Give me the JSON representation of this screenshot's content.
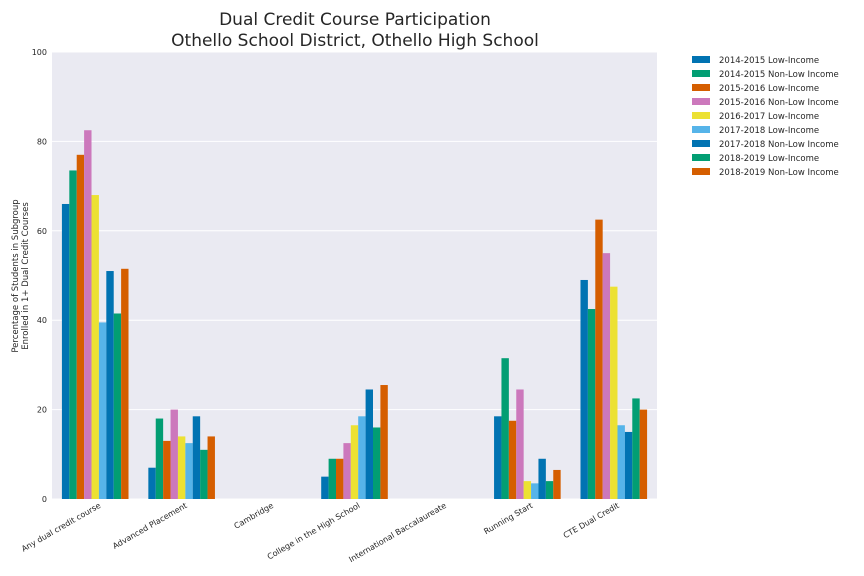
{
  "chart_data": {
    "type": "bar",
    "title": [
      "Dual Credit Course Participation",
      "Othello School District, Othello High School"
    ],
    "xlabel": "",
    "ylabel": [
      "Percentage of Students in Subgroup",
      "Enrolled in 1+ Dual Credit Courses"
    ],
    "ylim": [
      0,
      100
    ],
    "yticks": [
      0,
      20,
      40,
      60,
      80,
      100
    ],
    "grid": true,
    "legend_position": "outside-top-right",
    "categories": [
      "Any dual credit course",
      "Advanced Placement",
      "Cambridge",
      "College in the High School",
      "International Baccalaureate",
      "Running Start",
      "CTE Dual Credit"
    ],
    "series": [
      {
        "name": "2014-2015 Low-Income",
        "color": "#0173b2",
        "values": [
          66,
          7,
          0,
          5,
          0,
          18.5,
          49
        ]
      },
      {
        "name": "2014-2015 Non-Low Income",
        "color": "#029e73",
        "values": [
          73.5,
          18,
          0,
          9,
          0,
          31.5,
          42.5
        ]
      },
      {
        "name": "2015-2016 Low-Income",
        "color": "#d55e00",
        "values": [
          77,
          13,
          0,
          9,
          0,
          17.5,
          62.5
        ]
      },
      {
        "name": "2015-2016 Non-Low Income",
        "color": "#cc78bc",
        "values": [
          82.5,
          20,
          0,
          12.5,
          0,
          24.5,
          55
        ]
      },
      {
        "name": "2016-2017 Low-Income",
        "color": "#ece133",
        "values": [
          68,
          14,
          0,
          16.5,
          0,
          4,
          47.5
        ]
      },
      {
        "name": "2017-2018 Low-Income",
        "color": "#56b4e9",
        "values": [
          39.5,
          12.5,
          0,
          18.5,
          0,
          3.5,
          16.5
        ]
      },
      {
        "name": "2017-2018 Non-Low Income",
        "color": "#0173b2",
        "values": [
          51,
          18.5,
          0,
          24.5,
          0,
          9,
          15
        ]
      },
      {
        "name": "2018-2019 Low-Income",
        "color": "#029e73",
        "values": [
          41.5,
          11,
          0,
          16,
          0,
          4,
          22.5
        ]
      },
      {
        "name": "2018-2019 Non-Low Income",
        "color": "#d55e00",
        "values": [
          51.5,
          14,
          0,
          25.5,
          0,
          6.5,
          20
        ]
      }
    ]
  },
  "colors": {
    "plot_background": "#eaeaf2",
    "grid": "#ffffff",
    "text": "#262626"
  }
}
